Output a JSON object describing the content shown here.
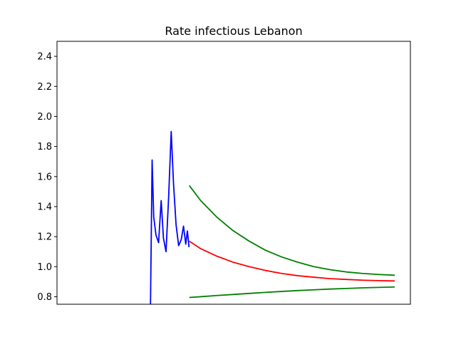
{
  "chart_data": {
    "type": "line",
    "title": "Rate infectious Lebanon",
    "xlabel": "",
    "ylabel": "",
    "ylim": [
      0.75,
      2.5
    ],
    "xlim": [
      0,
      100
    ],
    "yticks": [
      "0.8",
      "1.0",
      "1.2",
      "1.4",
      "1.6",
      "1.8",
      "2.0",
      "2.2",
      "2.4"
    ],
    "xticks_visible": false,
    "grid": false,
    "legend": "none",
    "series": [
      {
        "color": "#0000ff",
        "x": [
          24.5,
          25.0,
          25.5,
          26.2,
          27.0,
          27.8,
          28.5,
          29.3,
          30.1,
          30.9,
          31.6,
          32.4,
          33.2,
          34.0,
          34.7,
          35.4,
          35.9
        ],
        "y": [
          0.75,
          1.71,
          1.33,
          1.21,
          1.16,
          1.44,
          1.19,
          1.1,
          1.46,
          1.9,
          1.56,
          1.28,
          1.14,
          1.18,
          1.27,
          1.15,
          1.24
        ]
      },
      {
        "color": "#0000ff",
        "x": [
          35.9,
          36.4
        ],
        "y": [
          1.24,
          1.13
        ]
      },
      {
        "color": "#ff0000",
        "x": [
          36.5,
          40,
          45,
          50,
          55,
          60,
          65,
          70,
          75,
          80,
          85,
          90,
          95,
          100
        ],
        "y": [
          1.17,
          1.12,
          1.07,
          1.03,
          1.0,
          0.975,
          0.955,
          0.94,
          0.93,
          0.92,
          0.915,
          0.91,
          0.907,
          0.905
        ]
      },
      {
        "color": "#008000",
        "x": [
          36.5,
          40,
          45,
          50,
          55,
          60,
          65,
          70,
          75,
          80,
          85,
          90,
          95,
          100
        ],
        "y": [
          1.54,
          1.44,
          1.33,
          1.24,
          1.17,
          1.11,
          1.065,
          1.03,
          1.0,
          0.98,
          0.965,
          0.955,
          0.948,
          0.943
        ]
      },
      {
        "color": "#008000",
        "x": [
          36.5,
          40,
          45,
          50,
          55,
          60,
          65,
          70,
          75,
          80,
          85,
          90,
          95,
          100
        ],
        "y": [
          0.795,
          0.8,
          0.808,
          0.815,
          0.822,
          0.829,
          0.835,
          0.841,
          0.846,
          0.851,
          0.855,
          0.859,
          0.862,
          0.865
        ]
      }
    ]
  }
}
